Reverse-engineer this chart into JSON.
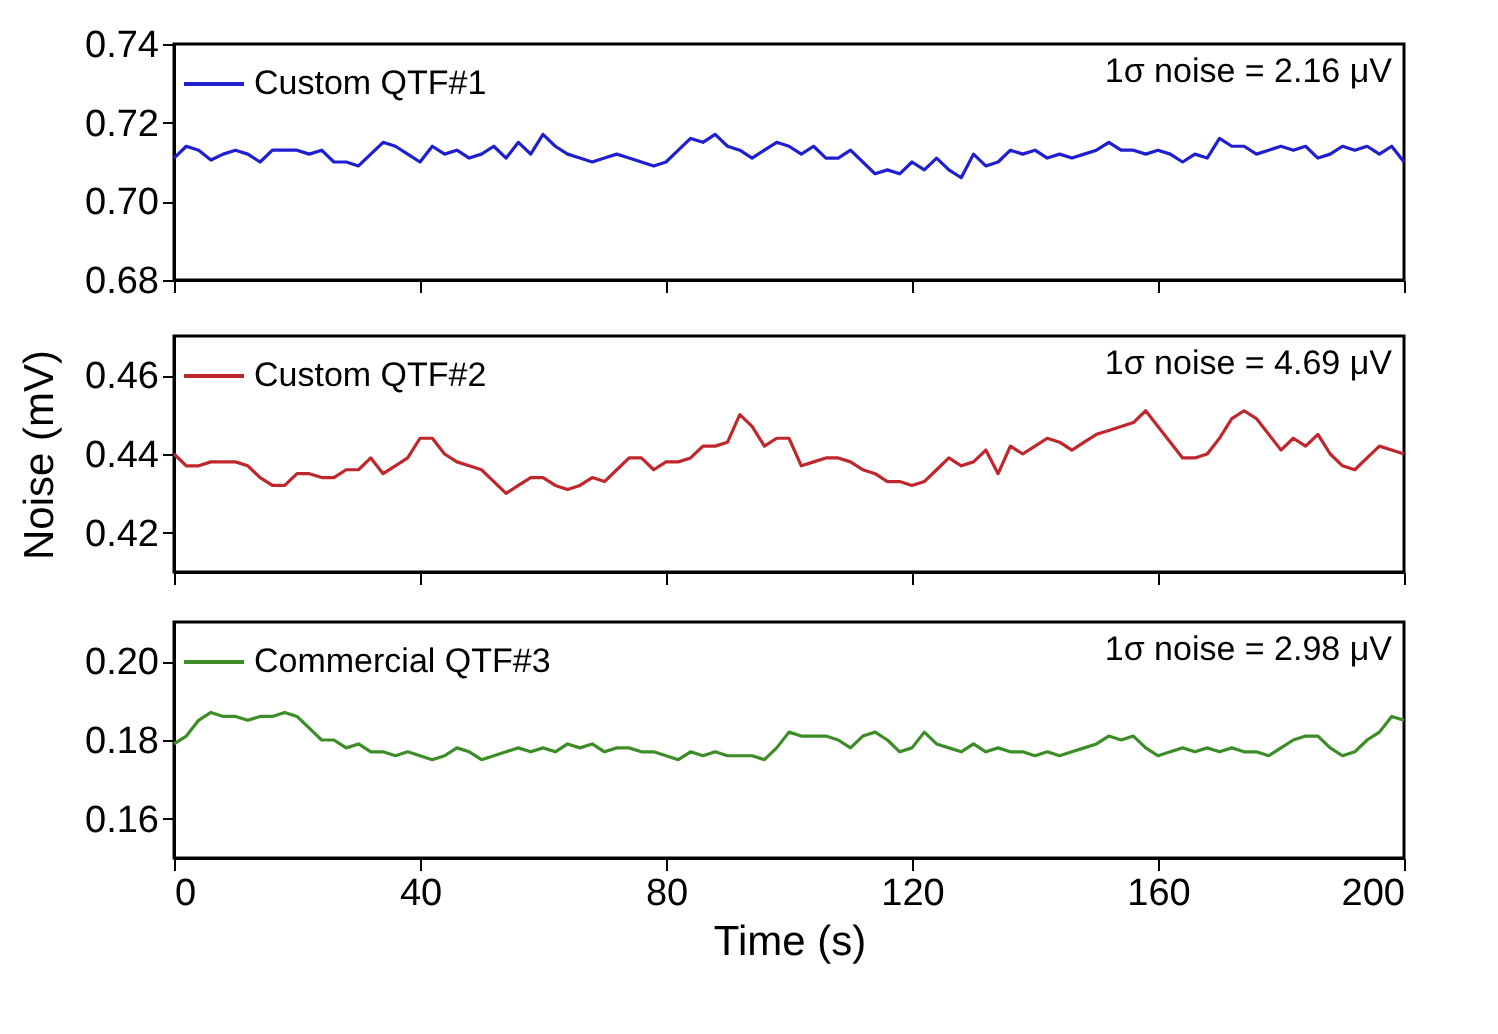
{
  "chart_data": [
    {
      "type": "line",
      "x": [
        0,
        2,
        4,
        6,
        8,
        10,
        12,
        14,
        16,
        18,
        20,
        22,
        24,
        26,
        28,
        30,
        32,
        34,
        36,
        38,
        40,
        42,
        44,
        46,
        48,
        50,
        52,
        54,
        56,
        58,
        60,
        62,
        64,
        66,
        68,
        70,
        72,
        74,
        76,
        78,
        80,
        82,
        84,
        86,
        88,
        90,
        92,
        94,
        96,
        98,
        100,
        102,
        104,
        106,
        108,
        110,
        112,
        114,
        116,
        118,
        120,
        122,
        124,
        126,
        128,
        130,
        132,
        134,
        136,
        138,
        140,
        142,
        144,
        146,
        148,
        150,
        152,
        154,
        156,
        158,
        160,
        162,
        164,
        166,
        168,
        170,
        172,
        174,
        176,
        178,
        180,
        182,
        184,
        186,
        188,
        190,
        192,
        194,
        196,
        198,
        200
      ],
      "series": [
        {
          "name": "Custom QTF#1",
          "color": "#1f1fcf",
          "values": [
            0.711,
            0.714,
            0.713,
            0.7105,
            0.712,
            0.713,
            0.712,
            0.71,
            0.713,
            0.713,
            0.713,
            0.712,
            0.713,
            0.71,
            0.71,
            0.709,
            0.712,
            0.715,
            0.714,
            0.712,
            0.71,
            0.714,
            0.712,
            0.713,
            0.711,
            0.712,
            0.714,
            0.711,
            0.715,
            0.712,
            0.717,
            0.714,
            0.712,
            0.711,
            0.71,
            0.711,
            0.712,
            0.711,
            0.71,
            0.709,
            0.71,
            0.713,
            0.716,
            0.715,
            0.717,
            0.714,
            0.713,
            0.711,
            0.713,
            0.715,
            0.714,
            0.712,
            0.714,
            0.711,
            0.711,
            0.713,
            0.71,
            0.707,
            0.708,
            0.707,
            0.71,
            0.708,
            0.711,
            0.708,
            0.706,
            0.712,
            0.709,
            0.71,
            0.713,
            0.712,
            0.713,
            0.711,
            0.712,
            0.711,
            0.712,
            0.713,
            0.715,
            0.713,
            0.713,
            0.712,
            0.713,
            0.712,
            0.71,
            0.712,
            0.711,
            0.716,
            0.714,
            0.714,
            0.712,
            0.713,
            0.714,
            0.713,
            0.714,
            0.711,
            0.712,
            0.714,
            0.713,
            0.714,
            0.712,
            0.714,
            0.71
          ]
        }
      ],
      "xlim": [
        0,
        200
      ],
      "xticks": [
        0,
        40,
        80,
        120,
        160,
        200
      ],
      "ylim": [
        0.68,
        0.74
      ],
      "yticks": [
        0.68,
        {
          "value": 0.7,
          "label": "0.70"
        },
        0.72,
        0.74
      ],
      "annotations": [
        "1σ noise = 2.16 μV"
      ],
      "legend": "top left",
      "grid": false,
      "tick_labels": "y"
    },
    {
      "type": "line",
      "x": [
        0,
        2,
        4,
        6,
        8,
        10,
        12,
        14,
        16,
        18,
        20,
        22,
        24,
        26,
        28,
        30,
        32,
        34,
        36,
        38,
        40,
        42,
        44,
        46,
        48,
        50,
        52,
        54,
        56,
        58,
        60,
        62,
        64,
        66,
        68,
        70,
        72,
        74,
        76,
        78,
        80,
        82,
        84,
        86,
        88,
        90,
        92,
        94,
        96,
        98,
        100,
        102,
        104,
        106,
        108,
        110,
        112,
        114,
        116,
        118,
        120,
        122,
        124,
        126,
        128,
        130,
        132,
        134,
        136,
        138,
        140,
        142,
        144,
        146,
        148,
        150,
        152,
        154,
        156,
        158,
        160,
        162,
        164,
        166,
        168,
        170,
        172,
        174,
        176,
        178,
        180,
        182,
        184,
        186,
        188,
        190,
        192,
        194,
        196,
        198,
        200
      ],
      "series": [
        {
          "name": "Custom QTF#2",
          "color": "#c0272d",
          "values": [
            0.44,
            0.437,
            0.437,
            0.438,
            0.438,
            0.438,
            0.437,
            0.434,
            0.432,
            0.432,
            0.435,
            0.435,
            0.434,
            0.434,
            0.436,
            0.436,
            0.439,
            0.435,
            0.437,
            0.439,
            0.444,
            0.444,
            0.44,
            0.438,
            0.437,
            0.436,
            0.433,
            0.43,
            0.432,
            0.434,
            0.434,
            0.432,
            0.431,
            0.432,
            0.434,
            0.433,
            0.436,
            0.439,
            0.439,
            0.436,
            0.438,
            0.438,
            0.439,
            0.442,
            0.442,
            0.443,
            0.45,
            0.447,
            0.442,
            0.444,
            0.444,
            0.437,
            0.438,
            0.439,
            0.439,
            0.438,
            0.436,
            0.435,
            0.433,
            0.433,
            0.432,
            0.433,
            0.436,
            0.439,
            0.437,
            0.438,
            0.441,
            0.435,
            0.442,
            0.44,
            0.442,
            0.444,
            0.443,
            0.441,
            0.443,
            0.445,
            0.446,
            0.447,
            0.448,
            0.451,
            0.447,
            0.443,
            0.439,
            0.439,
            0.44,
            0.444,
            0.449,
            0.451,
            0.449,
            0.445,
            0.441,
            0.444,
            0.442,
            0.445,
            0.44,
            0.437,
            0.436,
            0.439,
            0.442,
            0.441,
            0.44
          ]
        }
      ],
      "xlim": [
        0,
        200
      ],
      "xticks": [
        0,
        40,
        80,
        120,
        160,
        200
      ],
      "ylim": [
        0.41,
        0.47
      ],
      "yticks": [
        0.42,
        0.44,
        0.46
      ],
      "ylabel": "Noise (mV)",
      "annotations": [
        "1σ noise = 4.69 μV"
      ],
      "legend": "top left",
      "grid": false,
      "tick_labels": "y"
    },
    {
      "type": "line",
      "x": [
        0,
        2,
        4,
        6,
        8,
        10,
        12,
        14,
        16,
        18,
        20,
        22,
        24,
        26,
        28,
        30,
        32,
        34,
        36,
        38,
        40,
        42,
        44,
        46,
        48,
        50,
        52,
        54,
        56,
        58,
        60,
        62,
        64,
        66,
        68,
        70,
        72,
        74,
        76,
        78,
        80,
        82,
        84,
        86,
        88,
        90,
        92,
        94,
        96,
        98,
        100,
        102,
        104,
        106,
        108,
        110,
        112,
        114,
        116,
        118,
        120,
        122,
        124,
        126,
        128,
        130,
        132,
        134,
        136,
        138,
        140,
        142,
        144,
        146,
        148,
        150,
        152,
        154,
        156,
        158,
        160,
        162,
        164,
        166,
        168,
        170,
        172,
        174,
        176,
        178,
        180,
        182,
        184,
        186,
        188,
        190,
        192,
        194,
        196,
        198,
        200
      ],
      "series": [
        {
          "name": "Commercial QTF#3",
          "color": "#3c8c28",
          "values": [
            0.179,
            0.181,
            0.185,
            0.187,
            0.186,
            0.186,
            0.185,
            0.186,
            0.186,
            0.187,
            0.186,
            0.183,
            0.18,
            0.18,
            0.178,
            0.179,
            0.177,
            0.177,
            0.176,
            0.177,
            0.176,
            0.175,
            0.176,
            0.178,
            0.177,
            0.175,
            0.176,
            0.177,
            0.178,
            0.177,
            0.178,
            0.177,
            0.179,
            0.178,
            0.179,
            0.177,
            0.178,
            0.178,
            0.177,
            0.177,
            0.176,
            0.175,
            0.177,
            0.176,
            0.177,
            0.176,
            0.176,
            0.176,
            0.175,
            0.178,
            0.182,
            0.181,
            0.181,
            0.181,
            0.18,
            0.178,
            0.181,
            0.182,
            0.18,
            0.177,
            0.178,
            0.182,
            0.179,
            0.178,
            0.177,
            0.179,
            0.177,
            0.178,
            0.177,
            0.177,
            0.176,
            0.177,
            0.176,
            0.177,
            0.178,
            0.179,
            0.181,
            0.18,
            0.181,
            0.178,
            0.176,
            0.177,
            0.178,
            0.177,
            0.178,
            0.177,
            0.178,
            0.177,
            0.177,
            0.176,
            0.178,
            0.18,
            0.181,
            0.181,
            0.178,
            0.176,
            0.177,
            0.18,
            0.182,
            0.186,
            0.185
          ]
        }
      ],
      "xlim": [
        0,
        200
      ],
      "xticks": [
        0,
        40,
        80,
        120,
        160,
        200
      ],
      "ylim": [
        0.15,
        0.21
      ],
      "yticks": [
        0.16,
        0.18,
        {
          "value": 0.2,
          "label": "0.20"
        }
      ],
      "xlabel": "Time (s)",
      "annotations": [
        "1σ noise = 2.98 μV"
      ],
      "legend": "top left",
      "grid": false
    }
  ]
}
